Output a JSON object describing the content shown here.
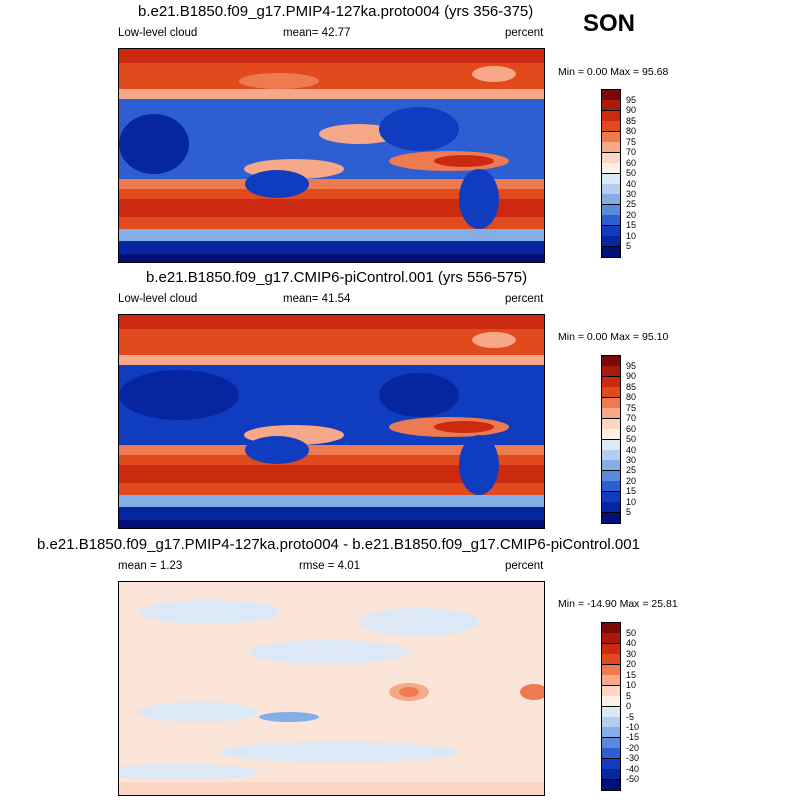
{
  "season": "SON",
  "panels": [
    {
      "title": "b.e21.B1850.f09_g17.PMIP4-127ka.proto004 (yrs 356-375)",
      "left_label": "Low-level cloud",
      "center_label": "mean=  42.77",
      "right_label": "percent",
      "minmax": "Min =   0.00 Max =  95.68",
      "colorbar": {
        "levels": [
          "95",
          "90",
          "85",
          "80",
          "75",
          "70",
          "60",
          "50",
          "40",
          "30",
          "25",
          "20",
          "15",
          "10",
          "5"
        ],
        "colors": [
          "#7a0a0a",
          "#a81a0c",
          "#cc2a10",
          "#e04a1c",
          "#ee7a52",
          "#f6a888",
          "#fbd6c4",
          "#fdf0e8",
          "#dce8f6",
          "#b4cdef",
          "#86aee6",
          "#5b89dc",
          "#2e5fd2",
          "#103cc0",
          "#0626a0",
          "#000f7a"
        ]
      }
    },
    {
      "title": "b.e21.B1850.f09_g17.CMIP6-piControl.001 (yrs 556-575)",
      "left_label": "Low-level cloud",
      "center_label": "mean=  41.54",
      "right_label": "percent",
      "minmax": "Min =   0.00 Max =  95.10",
      "colorbar": {
        "levels": [
          "95",
          "90",
          "85",
          "80",
          "75",
          "70",
          "60",
          "50",
          "40",
          "30",
          "25",
          "20",
          "15",
          "10",
          "5"
        ],
        "colors": [
          "#7a0a0a",
          "#a81a0c",
          "#cc2a10",
          "#e04a1c",
          "#ee7a52",
          "#f6a888",
          "#fbd6c4",
          "#fdf0e8",
          "#dce8f6",
          "#b4cdef",
          "#86aee6",
          "#5b89dc",
          "#2e5fd2",
          "#103cc0",
          "#0626a0",
          "#000f7a"
        ]
      }
    },
    {
      "title": "b.e21.B1850.f09_g17.PMIP4-127ka.proto004 - b.e21.B1850.f09_g17.CMIP6-piControl.001",
      "left_label": "mean =   1.23",
      "center_label": "rmse =   4.01",
      "right_label": "percent",
      "minmax": "Min = -14.90 Max =  25.81",
      "colorbar": {
        "levels": [
          "50",
          "40",
          "30",
          "20",
          "15",
          "10",
          "5",
          "0",
          "-5",
          "-10",
          "-15",
          "-20",
          "-30",
          "-40",
          "-50"
        ],
        "colors": [
          "#7a0a0a",
          "#a81a0c",
          "#cc2a10",
          "#e04a1c",
          "#ee7a52",
          "#f6a888",
          "#fbd6c4",
          "#fdf0e8",
          "#dce8f6",
          "#b4cdef",
          "#86aee6",
          "#5b89dc",
          "#2e5fd2",
          "#103cc0",
          "#0626a0",
          "#000f7a"
        ]
      }
    }
  ]
}
